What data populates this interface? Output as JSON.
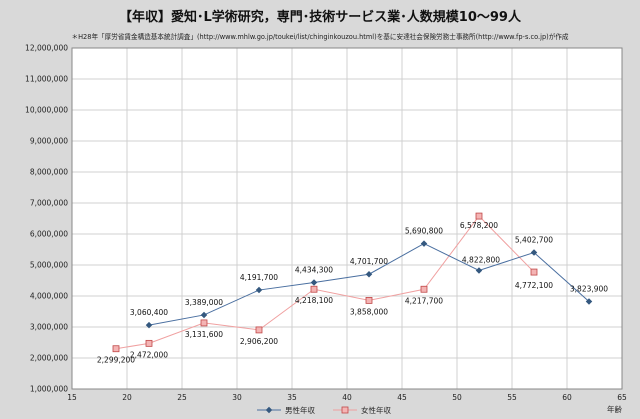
{
  "title": "【年収】愛知･L学術研究，専門･技術サービス業･人数規模10～99人",
  "source": "＊H28年「厚労省賃金構造基本統計調査」(http://www.mhlw.go.jp/toukei/list/chinginkouzou.html)を基に安達社会保険労務士事務所(http://www.fp-s.co.jp)が作成",
  "colors": {
    "male": "#4a6fa0",
    "female": "#f0a0a0",
    "male_marker": "#34587f",
    "female_marker": "#c04848",
    "plot_bg": "#ffffff",
    "page_bg": "#d9d9d9"
  },
  "chart_data": {
    "type": "line",
    "title": "【年収】愛知･L学術研究，専門･技術サービス業･人数規模10～99人",
    "xlabel": "年齢",
    "ylabel": "",
    "xlim": [
      15,
      65
    ],
    "ylim": [
      1000000,
      12000000
    ],
    "xticks": [
      15,
      20,
      25,
      30,
      35,
      40,
      45,
      50,
      55,
      60,
      65
    ],
    "xtick_labels": [
      "15",
      "20",
      "25",
      "30",
      "35",
      "40",
      "45",
      "50",
      "55",
      "60",
      "65"
    ],
    "yticks": [
      1000000,
      2000000,
      3000000,
      4000000,
      5000000,
      6000000,
      7000000,
      8000000,
      9000000,
      10000000,
      11000000,
      12000000
    ],
    "ytick_labels": [
      "1,000,000",
      "2,000,000",
      "3,000,000",
      "4,000,000",
      "5,000,000",
      "6,000,000",
      "7,000,000",
      "8,000,000",
      "9,000,000",
      "10,000,000",
      "11,000,000",
      "12,000,000"
    ],
    "grid": true,
    "legend_position": "bottom",
    "series": [
      {
        "name": "男性年収",
        "x": [
          22,
          27,
          32,
          37,
          42,
          47,
          52,
          57,
          62
        ],
        "values": [
          3060400,
          3389000,
          4191700,
          4434300,
          4701700,
          5690800,
          4822800,
          5402700,
          3823900
        ],
        "labels": [
          "3,060,400",
          "3,389,000",
          "4,191,700",
          "4,434,300",
          "4,701,700",
          "5,690,800",
          "4,822,800",
          "5,402,700",
          "3,823,900"
        ]
      },
      {
        "name": "女性年収",
        "x": [
          19,
          22,
          27,
          32,
          37,
          42,
          47,
          52,
          57
        ],
        "values": [
          2299200,
          2472000,
          3131600,
          2906200,
          4218100,
          3858000,
          4217700,
          6578200,
          4772100
        ],
        "labels": [
          "2,299,200",
          "2,472,000",
          "3,131,600",
          "2,906,200",
          "4,218,100",
          "3,858,000",
          "4,217,700",
          "6,578,200",
          "4,772,100"
        ]
      }
    ]
  }
}
